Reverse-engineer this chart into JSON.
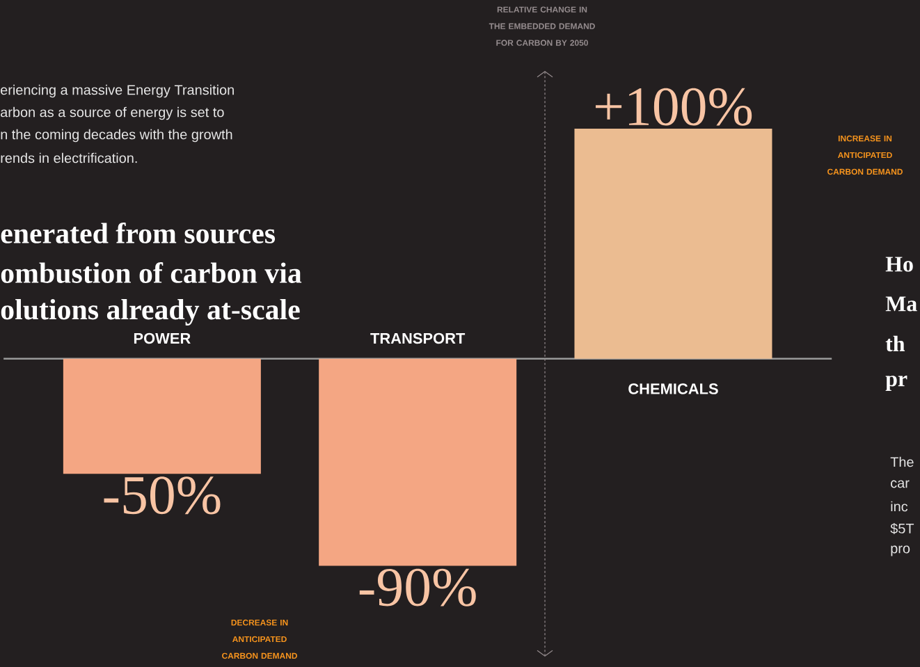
{
  "chart_data": {
    "type": "bar",
    "ylabel": "RELATIVE CHANGE IN THE EMBEDDED DEMAND FOR CARBON  BY 2050",
    "categories": [
      "POWER",
      "TRANSPORT",
      "CHEMICALS"
    ],
    "values": [
      -50,
      -90,
      100
    ],
    "colors": [
      "#f4a683",
      "#f4a683",
      "#ebbc91"
    ],
    "data_labels": true,
    "value_labels": [
      "-50%",
      "-90%",
      "+100%"
    ],
    "annotations": [
      "eriencing a massive Energy Transition",
      "arbon as a source of energy is set to",
      "n the coming decades with the growth",
      "rends in electrification.",
      "enerated from sources",
      "ombustion of carbon via",
      "olutions already at-scale",
      "DECREASE IN ANTICIPATED CARBON DEMAND",
      "INCREASE IN ANTICIPATED CARBON DEMAND",
      "Ho",
      "Ma",
      "th",
      "pr",
      "The",
      "car",
      "inc",
      "$5T",
      "pro"
    ]
  }
}
